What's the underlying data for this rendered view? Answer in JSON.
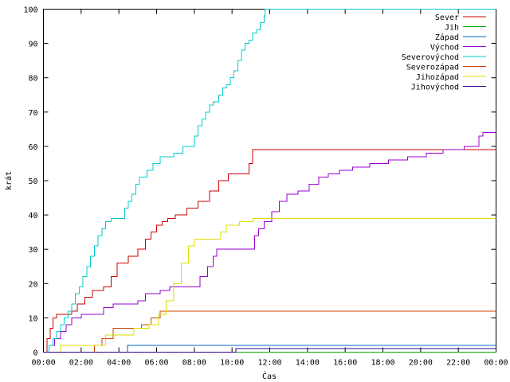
{
  "chart_data": {
    "type": "line",
    "title": "",
    "xlabel": "Čas",
    "ylabel": "krát",
    "xlim": [
      0,
      24
    ],
    "ylim": [
      0,
      100
    ],
    "xticks": [
      {
        "value": 0,
        "label": "00:00"
      },
      {
        "value": 2,
        "label": "02:00"
      },
      {
        "value": 4,
        "label": "04:00"
      },
      {
        "value": 6,
        "label": "06:00"
      },
      {
        "value": 8,
        "label": "08:00"
      },
      {
        "value": 10,
        "label": "10:00"
      },
      {
        "value": 12,
        "label": "12:00"
      },
      {
        "value": 14,
        "label": "14:00"
      },
      {
        "value": 16,
        "label": "16:00"
      },
      {
        "value": 18,
        "label": "18:00"
      },
      {
        "value": 20,
        "label": "20:00"
      },
      {
        "value": 22,
        "label": "22:00"
      },
      {
        "value": 24,
        "label": "00:00"
      }
    ],
    "yticks": [
      {
        "value": 0,
        "label": "0"
      },
      {
        "value": 10,
        "label": "10"
      },
      {
        "value": 20,
        "label": "20"
      },
      {
        "value": 30,
        "label": "30"
      },
      {
        "value": 40,
        "label": "40"
      },
      {
        "value": 50,
        "label": "50"
      },
      {
        "value": 60,
        "label": "60"
      },
      {
        "value": 70,
        "label": "70"
      },
      {
        "value": 80,
        "label": "80"
      },
      {
        "value": 90,
        "label": "90"
      },
      {
        "value": 100,
        "label": "100"
      }
    ],
    "grid": false,
    "legend_position": "top-right",
    "series": [
      {
        "name": "Sever",
        "color": "#cc0000",
        "x": [
          0,
          0.2,
          0.35,
          0.5,
          0.7,
          1.0,
          1.5,
          1.8,
          2.2,
          2.6,
          3.2,
          3.6,
          3.9,
          4.1,
          4.5,
          5.0,
          5.4,
          5.7,
          6.0,
          6.3,
          6.6,
          7.0,
          7.6,
          8.2,
          8.8,
          9.3,
          9.8,
          10.5,
          10.9,
          11.1,
          24
        ],
        "y": [
          0,
          4,
          7,
          10,
          11,
          11,
          12,
          14,
          16,
          18,
          19,
          22,
          26,
          26,
          28,
          30,
          33,
          35,
          37,
          38,
          39,
          40,
          42,
          44,
          47,
          50,
          52,
          52,
          55,
          59,
          59
        ]
      },
      {
        "name": "Jih",
        "color": "#00aa00",
        "x": [
          0,
          24
        ],
        "y": [
          0,
          0
        ]
      },
      {
        "name": "Západ",
        "color": "#0066cc",
        "x": [
          0,
          4.45,
          24
        ],
        "y": [
          0,
          2,
          2
        ]
      },
      {
        "name": "Východ",
        "color": "#9900cc",
        "x": [
          0,
          0.3,
          0.6,
          0.9,
          1.2,
          1.5,
          2.0,
          3.2,
          3.7,
          5.0,
          5.4,
          6.2,
          6.7,
          8.3,
          8.7,
          9.0,
          9.2,
          11.2,
          11.4,
          11.7,
          12.1,
          12.5,
          12.9,
          13.5,
          14.1,
          14.6,
          15.1,
          15.7,
          16.4,
          17.3,
          18.3,
          19.3,
          20.3,
          21.2,
          22.3,
          22.8,
          23.1,
          23.3,
          24
        ],
        "y": [
          0,
          2,
          4,
          6,
          8,
          10,
          11,
          13,
          14,
          15,
          17,
          18,
          19,
          22,
          25,
          28,
          30,
          34,
          36,
          38,
          41,
          44,
          46,
          47,
          49,
          51,
          52,
          53,
          54,
          55,
          56,
          57,
          58,
          59,
          60,
          60,
          63,
          64,
          64
        ]
      },
      {
        "name": "Severovýchod",
        "color": "#00cccc",
        "x": [
          0,
          0.3,
          0.5,
          0.7,
          0.9,
          1.1,
          1.3,
          1.5,
          1.7,
          1.9,
          2.1,
          2.3,
          2.5,
          2.7,
          2.9,
          3.1,
          3.3,
          3.6,
          4.1,
          4.3,
          4.5,
          4.7,
          4.9,
          5.1,
          5.5,
          5.8,
          6.2,
          6.6,
          6.9,
          7.4,
          7.8,
          8.0,
          8.2,
          8.4,
          8.6,
          8.8,
          9.0,
          9.3,
          9.5,
          9.7,
          9.9,
          10.1,
          10.3,
          10.5,
          10.7,
          10.9,
          11.1,
          11.3,
          11.5,
          11.7,
          11.75,
          24
        ],
        "y": [
          0,
          2,
          4,
          6,
          8,
          10,
          12,
          14,
          17,
          19,
          22,
          25,
          28,
          31,
          34,
          36,
          38,
          39,
          39,
          42,
          44,
          46,
          49,
          51,
          53,
          55,
          57,
          57,
          58,
          60,
          60,
          63,
          66,
          68,
          70,
          72,
          73,
          75,
          77,
          78,
          80,
          82,
          85,
          88,
          90,
          91,
          93,
          94,
          96,
          98,
          100,
          100
        ]
      },
      {
        "name": "Severozápad",
        "color": "#cc4400",
        "x": [
          0,
          2.7,
          3.1,
          3.7,
          4.2,
          5.2,
          5.7,
          6.2,
          24
        ],
        "y": [
          0,
          2,
          4,
          7,
          7,
          8,
          10,
          12,
          12
        ]
      },
      {
        "name": "Jihozápad",
        "color": "#dddd00",
        "x": [
          0,
          0.9,
          2.3,
          3.3,
          4.2,
          4.8,
          5.6,
          6.1,
          6.5,
          6.9,
          7.3,
          7.7,
          8.0,
          8.3,
          9.4,
          9.7,
          10.4,
          11.1,
          11.5,
          24
        ],
        "y": [
          0,
          2,
          2,
          5,
          5,
          7,
          8,
          11,
          15,
          20,
          26,
          31,
          33,
          33,
          35,
          37,
          38,
          39,
          39,
          39
        ]
      },
      {
        "name": "Jihovýchod",
        "color": "#330099",
        "x": [
          0,
          10.2,
          24
        ],
        "y": [
          0,
          1,
          1
        ]
      }
    ]
  }
}
